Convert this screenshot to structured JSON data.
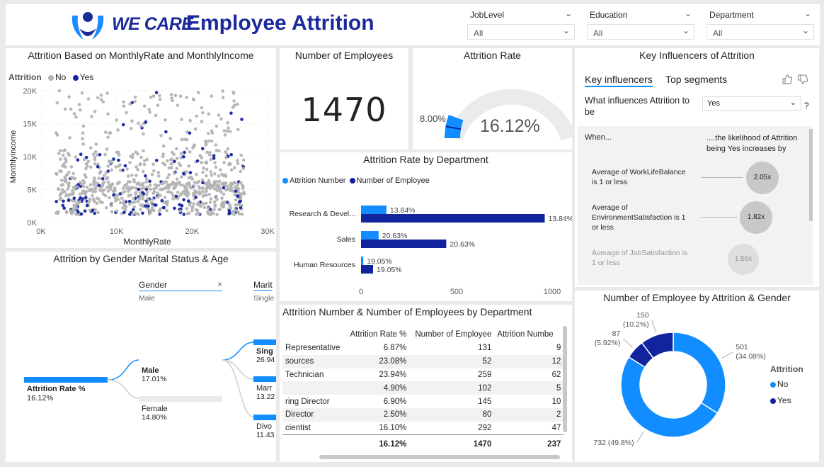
{
  "header": {
    "logo_text": "WE CARE",
    "title": "Employee Attrition",
    "slicers": [
      {
        "label": "JobLevel",
        "value": "All"
      },
      {
        "label": "Education",
        "value": "All"
      },
      {
        "label": "Department",
        "value": "All"
      }
    ]
  },
  "panels": {
    "scatter_title": "Attrition Based on MonthlyRate and MonthlyIncome",
    "employees_title": "Number of Employees",
    "attrition_rate_title": "Attrition Rate",
    "key_influencers_title": "Key Influencers of Attrition",
    "dept_rate_title": "Attrition Rate by Department",
    "decomp_title": "Attrition by Gender Marital Status & Age",
    "table_title": "Attrition Number & Number of Employees by Department",
    "donut_title": "Number of Employee by Attrition & Gender"
  },
  "kpi": {
    "employees": "1470"
  },
  "gauge": {
    "min_label": "8.00%",
    "value_label": "16.12%",
    "value": 16.12,
    "max": 100,
    "target": 8.0
  },
  "key_influencers": {
    "tab_active": "Key influencers",
    "tab_other": "Top segments",
    "question": "What influences Attrition to be",
    "answer": "Yes",
    "help": "?",
    "when_label": "When...",
    "likelihood_label": "....the likelihood of Attrition being Yes increases by",
    "items": [
      {
        "condition": "Average of WorkLifeBalance is 1 or less",
        "factor": "2.05x"
      },
      {
        "condition": "Average of EnvironmentSatisfaction is 1 or less",
        "factor": "1.82x"
      },
      {
        "condition": "Average of JobSatisfaction is 1 or less",
        "factor": "1.58x"
      }
    ]
  },
  "decomp": {
    "root_label": "Attrition Rate %",
    "root_value": "16.12%",
    "gender_header": "Gender",
    "gender_sub": "Male",
    "marital_header": "Marit",
    "marital_sub": "Single",
    "close_icon": "×",
    "genders": [
      {
        "label": "Male",
        "value": "17.01%",
        "fraction": 0.85
      },
      {
        "label": "Female",
        "value": "14.80%",
        "fraction": 0.74
      }
    ],
    "marital": [
      {
        "label": "Sing",
        "value": "26.94",
        "fraction": 1.0
      },
      {
        "label": "Marr",
        "value": "13.22",
        "fraction": 0.5
      },
      {
        "label": "Divo",
        "value": "11.43",
        "fraction": 0.42
      }
    ]
  },
  "dept_table": {
    "headers": [
      "Attrition Rate %",
      "Number of Employee",
      "Attrition Numbe"
    ],
    "rows": [
      {
        "role": "Representative",
        "rate": "6.87%",
        "n": "131",
        "att": "9"
      },
      {
        "role": "sources",
        "rate": "23.08%",
        "n": "52",
        "att": "12"
      },
      {
        "role": "Technician",
        "rate": "23.94%",
        "n": "259",
        "att": "62"
      },
      {
        "role": "",
        "rate": "4.90%",
        "n": "102",
        "att": "5"
      },
      {
        "role": "ring Director",
        "rate": "6.90%",
        "n": "145",
        "att": "10"
      },
      {
        "role": "Director",
        "rate": "2.50%",
        "n": "80",
        "att": "2"
      },
      {
        "role": "cientist",
        "rate": "16.10%",
        "n": "292",
        "att": "47"
      }
    ],
    "total": {
      "rate": "16.12%",
      "n": "1470",
      "att": "237"
    }
  },
  "donut_legend_title": "Attrition",
  "colors": {
    "no": "#118dff",
    "yes": "#12239e",
    "grey": "#b3b3b3"
  },
  "chart_data": [
    {
      "type": "scatter",
      "xlabel": "MonthlyRate",
      "ylabel": "MonthlyIncome",
      "legend_title": "Attrition",
      "series_names": [
        "No",
        "Yes"
      ],
      "x_ticks": [
        "0K",
        "10K",
        "20K",
        "30K"
      ],
      "y_ticks": [
        "0K",
        "5K",
        "10K",
        "15K",
        "20K"
      ],
      "xlim": [
        0,
        30000
      ],
      "ylim": [
        0,
        20000
      ]
    },
    {
      "type": "bar",
      "orientation": "horizontal",
      "categories": [
        "Research & Devel...",
        "Sales",
        "Human Resources"
      ],
      "series": [
        {
          "name": "Attrition Number",
          "values": [
            133,
            92,
            12
          ],
          "labels": [
            "13.84%",
            "20.63%",
            "19.05%"
          ]
        },
        {
          "name": "Number of Employee",
          "values": [
            961,
            446,
            63
          ],
          "labels": [
            "13.84%",
            "20.63%",
            "19.05%"
          ]
        }
      ],
      "x_ticks": [
        "0",
        "500",
        "1000"
      ],
      "xlim": [
        0,
        1000
      ]
    },
    {
      "type": "pie",
      "donut": true,
      "slices": [
        {
          "name": "No",
          "value": 732,
          "label": "732 (49.8%)"
        },
        {
          "name": "No",
          "value": 501,
          "label": "501 (34.08%)"
        },
        {
          "name": "Yes",
          "value": 87,
          "label": "87 (5.92%)"
        },
        {
          "name": "Yes",
          "value": 150,
          "label": "150 (10.2%)"
        }
      ]
    }
  ]
}
